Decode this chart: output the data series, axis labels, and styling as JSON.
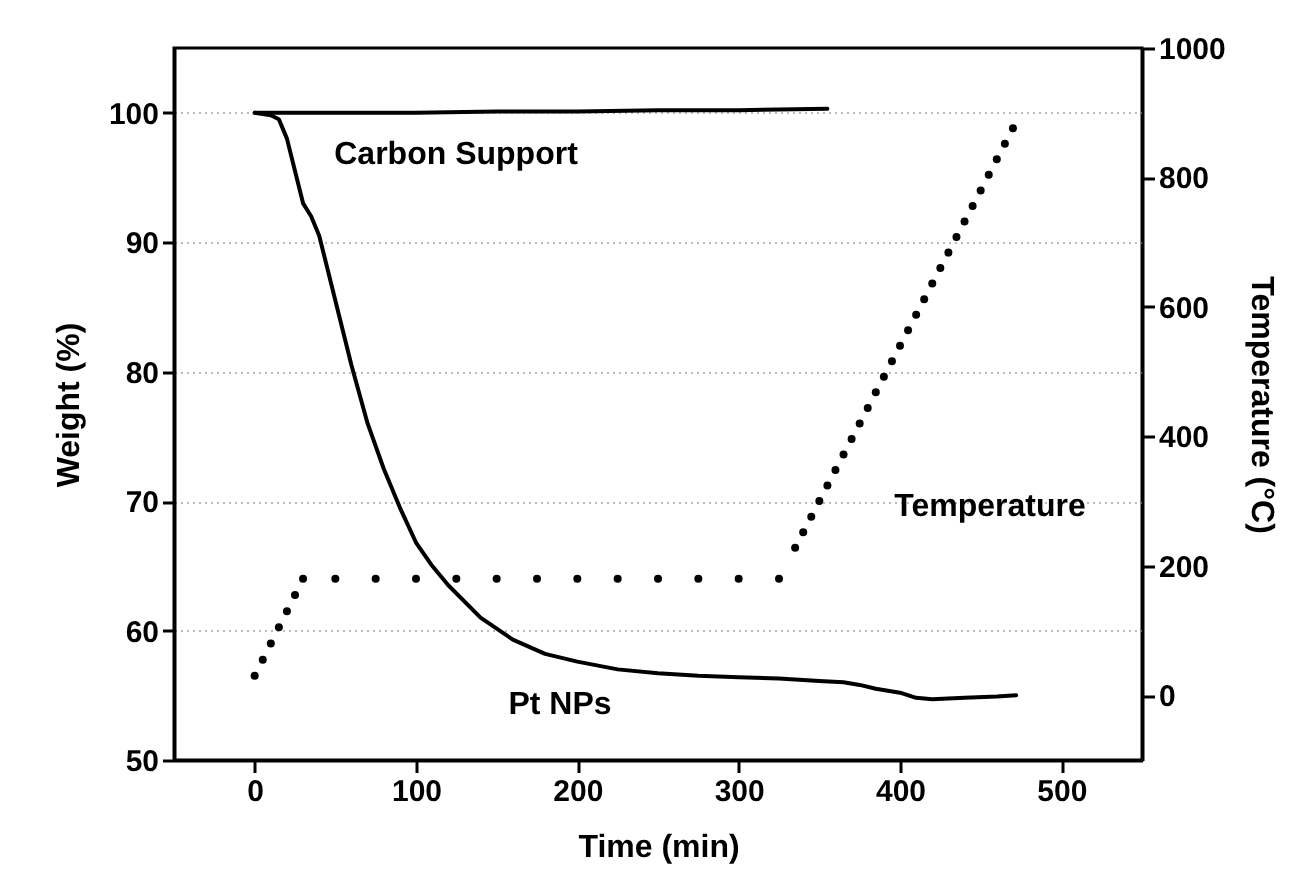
{
  "chart_data": {
    "type": "line",
    "xlabel": "Time (min)",
    "ylabel": "Weight (%)",
    "y2label": "Temperature (°C)",
    "xlim": [
      -50,
      550
    ],
    "xticks": [
      0,
      100,
      200,
      300,
      400,
      500
    ],
    "ylim": [
      50,
      105
    ],
    "yticks": [
      50,
      60,
      70,
      80,
      90,
      100
    ],
    "y2lim": [
      -100,
      1000
    ],
    "y2ticks": [
      0,
      200,
      400,
      600,
      800,
      1000
    ],
    "grid": "y",
    "legend": false,
    "series": [
      {
        "name": "Pt NPs",
        "color": "#000000",
        "line_style": "solid",
        "x": [
          0,
          10,
          15,
          20,
          25,
          30,
          35,
          40,
          45,
          50,
          60,
          70,
          80,
          90,
          100,
          110,
          120,
          140,
          160,
          180,
          200,
          225,
          250,
          275,
          300,
          325,
          350,
          365,
          375,
          385,
          400,
          410,
          420,
          440,
          460,
          472
        ],
        "values": [
          100,
          99.8,
          99.5,
          98,
          95.5,
          93,
          92,
          90.5,
          88,
          85.5,
          80.5,
          76,
          72.5,
          69.5,
          66.8,
          65,
          63.5,
          61,
          59.3,
          58.2,
          57.6,
          57,
          56.7,
          56.5,
          56.4,
          56.3,
          56.1,
          56,
          55.8,
          55.5,
          55.2,
          54.8,
          54.7,
          54.8,
          54.9,
          55
        ]
      },
      {
        "name": "Carbon Support",
        "color": "#000000",
        "line_style": "solid",
        "x": [
          0,
          50,
          100,
          150,
          200,
          250,
          300,
          355
        ],
        "values": [
          100,
          100,
          100,
          100.1,
          100.1,
          100.2,
          100.2,
          100.3
        ]
      },
      {
        "name": "Temperature",
        "type": "scatter",
        "axis": "y2",
        "marker": "circle",
        "color": "#000000",
        "x": [
          0,
          5,
          10,
          15,
          20,
          25,
          30,
          50,
          75,
          100,
          125,
          150,
          175,
          200,
          225,
          250,
          275,
          300,
          325,
          335,
          340,
          345,
          350,
          355,
          360,
          365,
          370,
          375,
          380,
          385,
          390,
          395,
          400,
          405,
          410,
          415,
          420,
          425,
          430,
          435,
          440,
          445,
          450,
          455,
          460,
          465,
          470
        ],
        "values": [
          30,
          55,
          80,
          105,
          130,
          155,
          180,
          180,
          180,
          180,
          180,
          180,
          180,
          180,
          180,
          180,
          180,
          180,
          180,
          228,
          252,
          276,
          300,
          324,
          348,
          372,
          396,
          420,
          444,
          468,
          492,
          516,
          540,
          564,
          588,
          612,
          636,
          660,
          684,
          708,
          732,
          756,
          780,
          804,
          828,
          852,
          876
        ]
      }
    ]
  }
}
